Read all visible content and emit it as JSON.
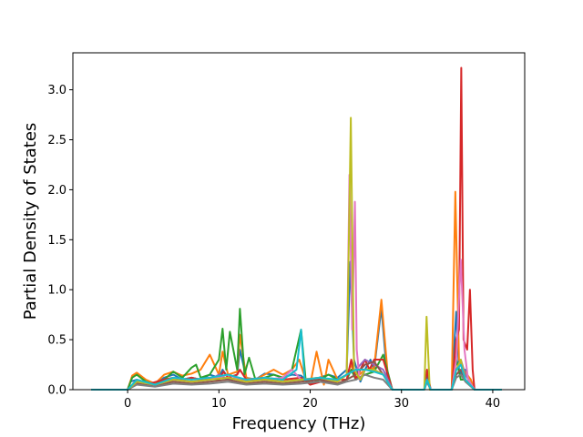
{
  "chart_data": {
    "type": "line",
    "title": "",
    "xlabel": "Frequency (THz)",
    "ylabel": "Partial Density of States",
    "xlim": [
      -6.0,
      43.5
    ],
    "ylim": [
      0.0,
      3.37
    ],
    "xticks": [
      0,
      10,
      20,
      30,
      40
    ],
    "xtick_labels": [
      "0",
      "10",
      "20",
      "30",
      "40"
    ],
    "yticks": [
      0.0,
      0.5,
      1.0,
      1.5,
      2.0,
      2.5,
      3.0
    ],
    "ytick_labels": [
      "0.0",
      "0.5",
      "1.0",
      "1.5",
      "2.0",
      "2.5",
      "3.0"
    ],
    "grid": false,
    "legend": "none",
    "series": [
      {
        "color": "#1f77b4",
        "x": [
          -4,
          0,
          0.3,
          1,
          2,
          3,
          4,
          5,
          6,
          7,
          8,
          9,
          10,
          10.4,
          11,
          12,
          12.3,
          13,
          14,
          15,
          16,
          17,
          18,
          19,
          19.5,
          20,
          21,
          22,
          23,
          24,
          24.4,
          24.8,
          25.5,
          26,
          26.6,
          27,
          27.8,
          28.5,
          29,
          32.5,
          32.8,
          33.2,
          35.5,
          36,
          36.3,
          36.6,
          37,
          37.5,
          38,
          41
        ],
        "y": [
          0,
          0,
          0.08,
          0.1,
          0.06,
          0.05,
          0.12,
          0.15,
          0.1,
          0.12,
          0.1,
          0.15,
          0.12,
          0.2,
          0.12,
          0.15,
          0.4,
          0.12,
          0.1,
          0.16,
          0.15,
          0.12,
          0.15,
          0.14,
          0.1,
          0.08,
          0.12,
          0.15,
          0.12,
          0.2,
          1.28,
          0.3,
          0.08,
          0.2,
          0.3,
          0.2,
          0.82,
          0.05,
          0,
          0,
          0.15,
          0,
          0,
          0.78,
          0.2,
          0.15,
          0.2,
          0.05,
          0,
          0
        ]
      },
      {
        "color": "#ff7f0e",
        "x": [
          -4,
          0,
          0.5,
          1,
          2,
          3,
          4,
          5,
          6,
          7,
          8,
          9,
          10,
          10.4,
          11,
          12,
          12.3,
          13,
          14,
          15,
          16,
          17,
          18,
          18.8,
          19.5,
          20,
          20.7,
          21.5,
          22,
          23,
          24,
          24.5,
          25,
          26,
          27,
          27.8,
          28.5,
          29,
          32.5,
          32.8,
          33.2,
          35.5,
          35.9,
          36.3,
          36.8,
          37.2,
          37.6,
          38,
          41
        ],
        "y": [
          0,
          0,
          0.14,
          0.17,
          0.1,
          0.06,
          0.15,
          0.18,
          0.14,
          0.16,
          0.2,
          0.35,
          0.15,
          0.38,
          0.15,
          0.18,
          0.55,
          0.12,
          0.1,
          0.15,
          0.2,
          0.15,
          0.2,
          0.3,
          0.1,
          0.05,
          0.38,
          0.05,
          0.3,
          0.1,
          0.15,
          0.25,
          0.12,
          0.2,
          0.22,
          0.9,
          0.15,
          0,
          0,
          0.1,
          0,
          0,
          1.98,
          0.3,
          0.2,
          0.15,
          0.1,
          0,
          0
        ]
      },
      {
        "color": "#2ca02c",
        "x": [
          -4,
          0,
          0.5,
          1,
          2,
          3,
          4,
          5,
          6,
          7,
          7.5,
          8,
          9,
          10,
          10.4,
          10.8,
          11.2,
          12,
          12.3,
          12.8,
          13.3,
          14,
          15,
          16,
          17,
          18,
          19,
          19.5,
          20,
          22,
          23,
          24,
          24.5,
          25,
          26,
          27,
          28,
          29,
          32.5,
          32.8,
          33.2,
          35.5,
          36,
          36.5,
          37,
          38,
          41
        ],
        "y": [
          0,
          0,
          0.12,
          0.15,
          0.08,
          0.05,
          0.1,
          0.18,
          0.12,
          0.22,
          0.25,
          0.12,
          0.15,
          0.3,
          0.61,
          0.2,
          0.58,
          0.2,
          0.81,
          0.15,
          0.32,
          0.1,
          0.12,
          0.15,
          0.12,
          0.2,
          0.6,
          0.1,
          0.05,
          0.15,
          0.1,
          0.1,
          0.2,
          0.1,
          0.15,
          0.18,
          0.35,
          0,
          0,
          0.1,
          0,
          0,
          0.3,
          0.1,
          0.1,
          0,
          0
        ]
      },
      {
        "color": "#d62728",
        "x": [
          -4,
          0,
          1,
          2,
          4,
          5,
          6,
          7,
          8,
          9,
          10,
          10.5,
          11,
          12,
          12.3,
          13,
          15,
          17,
          19,
          20,
          22,
          24,
          24.5,
          25,
          26,
          26.5,
          27,
          28,
          29,
          32.5,
          32.8,
          33.2,
          35.5,
          36,
          36.3,
          36.55,
          36.8,
          37.2,
          37.5,
          37.8,
          38,
          41
        ],
        "y": [
          0,
          0,
          0.1,
          0.05,
          0.1,
          0.12,
          0.1,
          0.12,
          0.1,
          0.12,
          0.1,
          0.18,
          0.12,
          0.15,
          0.2,
          0.1,
          0.12,
          0.1,
          0.12,
          0.05,
          0.1,
          0.1,
          0.3,
          0.1,
          0.3,
          0.2,
          0.3,
          0.3,
          0,
          0,
          0.2,
          0,
          0,
          0.5,
          0.6,
          3.22,
          0.5,
          0.4,
          1.0,
          0.2,
          0,
          0
        ]
      },
      {
        "color": "#9467bd",
        "x": [
          -4,
          0,
          1,
          3,
          5,
          7,
          9,
          10,
          11,
          12,
          13,
          15,
          17,
          19,
          21,
          23,
          24,
          25,
          26,
          27,
          28,
          29,
          32.5,
          32.8,
          33.2,
          35.5,
          36,
          36.5,
          37,
          38,
          41
        ],
        "y": [
          0,
          0,
          0.08,
          0.04,
          0.1,
          0.08,
          0.1,
          0.15,
          0.1,
          0.12,
          0.08,
          0.1,
          0.08,
          0.1,
          0.12,
          0.08,
          0.15,
          0.2,
          0.3,
          0.25,
          0.2,
          0,
          0,
          0.1,
          0,
          0,
          0.2,
          0.3,
          0.15,
          0,
          0
        ]
      },
      {
        "color": "#8c564b",
        "x": [
          -4,
          0,
          1,
          3,
          5,
          7,
          9,
          11,
          13,
          15,
          17,
          19,
          21,
          23,
          24,
          25,
          26,
          27,
          28,
          29,
          32.5,
          32.8,
          33.2,
          35.5,
          36,
          36.5,
          37,
          38,
          41
        ],
        "y": [
          0,
          0,
          0.06,
          0.04,
          0.08,
          0.06,
          0.08,
          0.1,
          0.06,
          0.08,
          0.06,
          0.08,
          0.1,
          0.06,
          0.1,
          0.15,
          0.25,
          0.28,
          0.15,
          0,
          0,
          0.08,
          0,
          0,
          0.15,
          0.2,
          0.1,
          0,
          0
        ]
      },
      {
        "color": "#e377c2",
        "x": [
          -4,
          0,
          1,
          3,
          5,
          7,
          9,
          11,
          13,
          15,
          17,
          18,
          19,
          21,
          23,
          24,
          24.3,
          24.6,
          24.9,
          25.1,
          25.4,
          26,
          27,
          28,
          29,
          32.5,
          32.8,
          33.2,
          35.5,
          36,
          36.5,
          36.9,
          37.3,
          38,
          41
        ],
        "y": [
          0,
          0,
          0.08,
          0.05,
          0.1,
          0.08,
          0.1,
          0.15,
          0.08,
          0.1,
          0.12,
          0.2,
          0.1,
          0.12,
          0.08,
          0.15,
          2.15,
          0.6,
          1.88,
          0.4,
          0.1,
          0.2,
          0.2,
          0.15,
          0,
          0,
          0.1,
          0,
          0,
          0.3,
          1.3,
          0.4,
          0.1,
          0,
          0
        ]
      },
      {
        "color": "#7f7f7f",
        "x": [
          -4,
          0,
          1,
          3,
          5,
          7,
          9,
          11,
          13,
          15,
          17,
          19,
          21,
          23,
          24,
          25,
          26,
          27,
          28,
          29,
          32.5,
          32.8,
          33.2,
          35.5,
          36,
          36.5,
          37,
          38,
          41
        ],
        "y": [
          0,
          0,
          0.05,
          0.03,
          0.06,
          0.05,
          0.06,
          0.08,
          0.05,
          0.06,
          0.05,
          0.06,
          0.08,
          0.05,
          0.08,
          0.1,
          0.15,
          0.12,
          0.1,
          0,
          0,
          0.08,
          0,
          0,
          0.12,
          0.15,
          0.08,
          0,
          0
        ]
      },
      {
        "color": "#bcbd22",
        "x": [
          -4,
          0,
          1,
          3,
          5,
          7,
          9,
          11,
          13,
          15,
          17,
          19,
          21,
          23,
          24,
          24.45,
          24.8,
          25.5,
          26,
          27,
          28,
          29,
          32.5,
          32.75,
          33.1,
          35.5,
          36,
          36.5,
          37,
          38,
          41
        ],
        "y": [
          0,
          0,
          0.08,
          0.05,
          0.1,
          0.08,
          0.1,
          0.12,
          0.08,
          0.1,
          0.08,
          0.1,
          0.12,
          0.08,
          0.15,
          2.72,
          0.2,
          0.1,
          0.2,
          0.2,
          0.15,
          0,
          0,
          0.73,
          0,
          0,
          0.2,
          0.3,
          0.1,
          0,
          0
        ]
      },
      {
        "color": "#17becf",
        "x": [
          -4,
          0,
          1,
          3,
          5,
          7,
          9,
          11,
          13,
          15,
          17,
          18.5,
          19,
          19.4,
          21,
          23,
          24,
          25,
          26,
          27,
          28,
          29,
          32.5,
          32.8,
          33.2,
          35.5,
          36,
          36.5,
          37,
          38,
          41
        ],
        "y": [
          0,
          0,
          0.1,
          0.05,
          0.12,
          0.1,
          0.12,
          0.15,
          0.1,
          0.12,
          0.1,
          0.2,
          0.6,
          0.1,
          0.12,
          0.1,
          0.15,
          0.2,
          0.2,
          0.18,
          0.15,
          0,
          0,
          0.1,
          0,
          0,
          0.2,
          0.25,
          0.1,
          0,
          0
        ]
      }
    ]
  }
}
